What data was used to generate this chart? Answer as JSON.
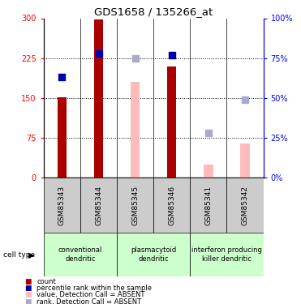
{
  "title": "GDS1658 / 135266_at",
  "samples": [
    "GSM85343",
    "GSM85344",
    "GSM85345",
    "GSM85346",
    "GSM85341",
    "GSM85342"
  ],
  "bar_values": [
    152,
    297,
    null,
    210,
    null,
    null
  ],
  "bar_absent_values": [
    null,
    null,
    180,
    null,
    25,
    65
  ],
  "rank_present_pct": [
    63,
    78,
    null,
    77,
    null,
    null
  ],
  "rank_absent_pct": [
    null,
    null,
    75,
    null,
    28,
    49
  ],
  "ylim_left": [
    0,
    300
  ],
  "ylim_right": [
    0,
    100
  ],
  "yticks_left": [
    0,
    75,
    150,
    225,
    300
  ],
  "ytick_labels_left": [
    "0",
    "75",
    "150",
    "225",
    "300"
  ],
  "yticks_right": [
    0,
    25,
    50,
    75,
    100
  ],
  "ytick_labels_right": [
    "0%",
    "25%",
    "50%",
    "75%",
    "100%"
  ],
  "bar_color": "#aa0000",
  "bar_absent_color": "#ffbbbb",
  "rank_color": "#0000aa",
  "rank_absent_color": "#aaaacc",
  "bar_width": 0.25,
  "rank_marker_size": 35,
  "hline_values": [
    75,
    150,
    225
  ],
  "group_labels": [
    "conventional\ndendritic",
    "plasmacytoid\ndendritic",
    "interferon producing\nkiller dendritic"
  ],
  "group_ranges": [
    [
      0,
      1
    ],
    [
      2,
      3
    ],
    [
      4,
      5
    ]
  ],
  "group_color": "#ccffcc",
  "sample_bg_color": "#cccccc"
}
